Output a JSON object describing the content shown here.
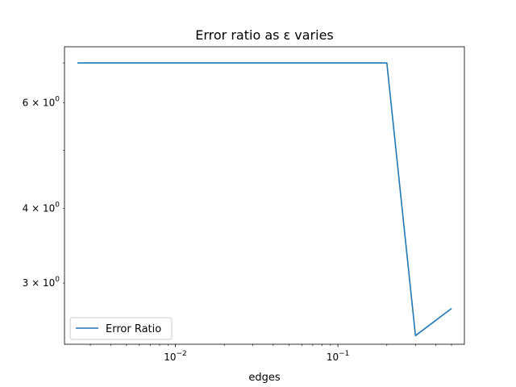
{
  "chart_data": {
    "type": "line",
    "title": "Error ratio as ε varies",
    "xlabel": "edges",
    "ylabel": "",
    "xscale": "log",
    "yscale": "log",
    "xlim": [
      0.00208,
      0.6
    ],
    "ylim": [
      2.37,
      7.45
    ],
    "grid": false,
    "legend_position": "lower left",
    "x_tick_labels": [
      {
        "value": 0.01,
        "label": "10",
        "exp": "−2"
      },
      {
        "value": 0.1,
        "label": "10",
        "exp": "−1"
      }
    ],
    "y_tick_labels": [
      {
        "value": 3,
        "label": "3 × 10",
        "exp": "0"
      },
      {
        "value": 4,
        "label": "4 × 10",
        "exp": "0"
      },
      {
        "value": 6,
        "label": "6 × 10",
        "exp": "0"
      }
    ],
    "series": [
      {
        "name": "Error Ratio",
        "color": "#1f77b4",
        "x": [
          0.0025,
          0.2,
          0.3,
          0.5
        ],
        "y": [
          7.0,
          7.0,
          2.45,
          2.72
        ]
      }
    ]
  }
}
